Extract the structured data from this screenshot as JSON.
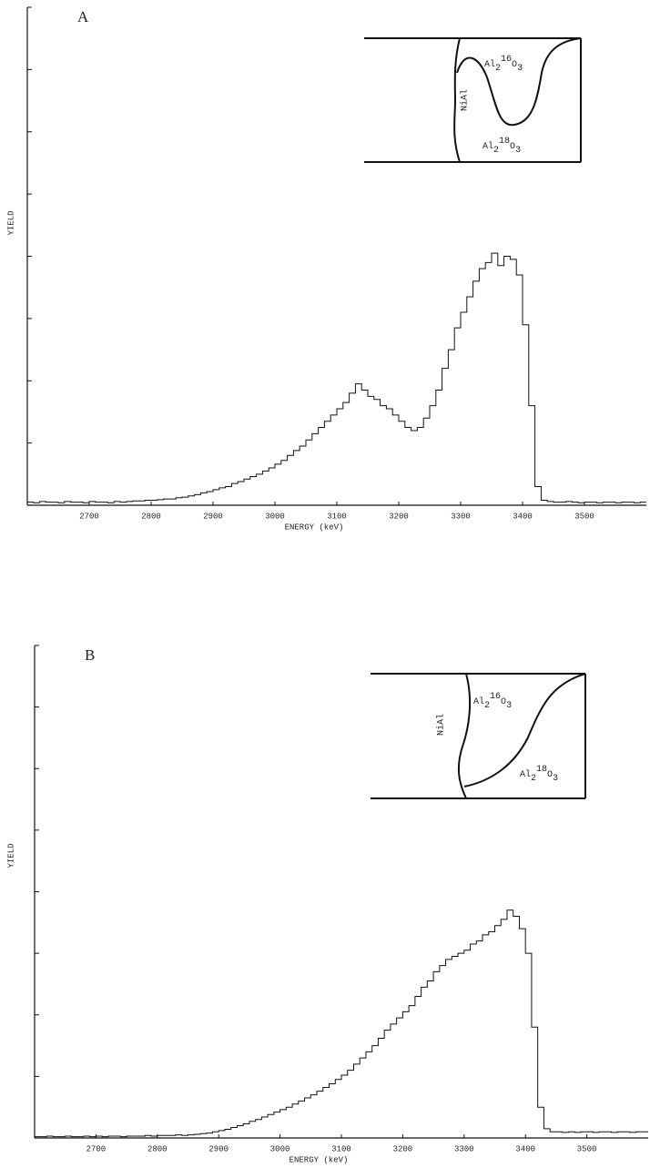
{
  "chart_data": [
    {
      "type": "step",
      "panel_label": "A",
      "xlabel": "ENERGY  (keV)",
      "ylabel": "YIELD",
      "color": "#111",
      "xlim": [
        2600,
        3600
      ],
      "xticks": [
        2700,
        2800,
        2900,
        3000,
        3100,
        3200,
        3300,
        3400,
        3500
      ],
      "ylim": [
        0,
        8
      ],
      "yticks": [
        0,
        1,
        2,
        3,
        4,
        5,
        6,
        7,
        8
      ],
      "x": [
        2600,
        2610,
        2620,
        2630,
        2640,
        2650,
        2660,
        2670,
        2680,
        2690,
        2700,
        2710,
        2720,
        2730,
        2740,
        2750,
        2760,
        2770,
        2780,
        2790,
        2800,
        2810,
        2820,
        2830,
        2840,
        2850,
        2860,
        2870,
        2880,
        2890,
        2900,
        2910,
        2920,
        2930,
        2940,
        2950,
        2960,
        2970,
        2980,
        2990,
        3000,
        3010,
        3020,
        3030,
        3040,
        3050,
        3060,
        3070,
        3080,
        3090,
        3100,
        3110,
        3120,
        3130,
        3140,
        3150,
        3160,
        3170,
        3180,
        3190,
        3200,
        3210,
        3220,
        3230,
        3240,
        3250,
        3260,
        3270,
        3280,
        3290,
        3300,
        3310,
        3320,
        3330,
        3340,
        3350,
        3360,
        3370,
        3380,
        3390,
        3400,
        3410,
        3420,
        3430,
        3440,
        3450,
        3460,
        3470,
        3480,
        3490,
        3500,
        3510,
        3520,
        3530,
        3540,
        3550,
        3560,
        3570,
        3580,
        3590,
        3600
      ],
      "values": [
        0.05,
        0.04,
        0.06,
        0.05,
        0.05,
        0.04,
        0.06,
        0.05,
        0.05,
        0.04,
        0.06,
        0.05,
        0.05,
        0.04,
        0.06,
        0.05,
        0.06,
        0.07,
        0.07,
        0.08,
        0.08,
        0.09,
        0.1,
        0.1,
        0.12,
        0.13,
        0.15,
        0.17,
        0.2,
        0.22,
        0.25,
        0.28,
        0.3,
        0.35,
        0.38,
        0.42,
        0.46,
        0.5,
        0.55,
        0.6,
        0.66,
        0.72,
        0.8,
        0.88,
        0.95,
        1.05,
        1.15,
        1.25,
        1.35,
        1.45,
        1.55,
        1.65,
        1.8,
        1.95,
        1.85,
        1.75,
        1.7,
        1.6,
        1.55,
        1.45,
        1.35,
        1.25,
        1.2,
        1.25,
        1.4,
        1.6,
        1.85,
        2.2,
        2.5,
        2.85,
        3.1,
        3.35,
        3.6,
        3.8,
        3.9,
        4.05,
        3.85,
        4.0,
        3.95,
        3.7,
        2.9,
        1.6,
        0.3,
        0.08,
        0.06,
        0.05,
        0.05,
        0.06,
        0.05,
        0.04,
        0.05,
        0.05,
        0.04,
        0.05,
        0.05,
        0.04,
        0.05,
        0.05,
        0.04,
        0.05,
        0.05
      ],
      "inset": {
        "left": "NiAl",
        "upper": [
          "Al",
          "2",
          "16",
          "O",
          "3"
        ],
        "lower": [
          "Al",
          "2",
          "18",
          "O",
          "3"
        ]
      }
    },
    {
      "type": "step",
      "panel_label": "B",
      "xlabel": "ENERGY  (keV)",
      "ylabel": "YIELD",
      "color": "#111",
      "xlim": [
        2600,
        3600
      ],
      "xticks": [
        2700,
        2800,
        2900,
        3000,
        3100,
        3200,
        3300,
        3400,
        3500
      ],
      "ylim": [
        0,
        8
      ],
      "yticks": [
        0,
        1,
        2,
        3,
        4,
        5,
        6,
        7,
        8
      ],
      "x": [
        2600,
        2610,
        2620,
        2630,
        2640,
        2650,
        2660,
        2670,
        2680,
        2690,
        2700,
        2710,
        2720,
        2730,
        2740,
        2750,
        2760,
        2770,
        2780,
        2790,
        2800,
        2810,
        2820,
        2830,
        2840,
        2850,
        2860,
        2870,
        2880,
        2890,
        2900,
        2910,
        2920,
        2930,
        2940,
        2950,
        2960,
        2970,
        2980,
        2990,
        3000,
        3010,
        3020,
        3030,
        3040,
        3050,
        3060,
        3070,
        3080,
        3090,
        3100,
        3110,
        3120,
        3130,
        3140,
        3150,
        3160,
        3170,
        3180,
        3190,
        3200,
        3210,
        3220,
        3230,
        3240,
        3250,
        3260,
        3270,
        3280,
        3290,
        3300,
        3310,
        3320,
        3330,
        3340,
        3350,
        3360,
        3370,
        3380,
        3390,
        3400,
        3410,
        3420,
        3430,
        3440,
        3450,
        3460,
        3470,
        3480,
        3490,
        3500,
        3510,
        3520,
        3530,
        3540,
        3550,
        3560,
        3570,
        3580,
        3590,
        3600
      ],
      "values": [
        0.02,
        0.02,
        0.03,
        0.02,
        0.02,
        0.03,
        0.02,
        0.02,
        0.03,
        0.02,
        0.03,
        0.02,
        0.03,
        0.03,
        0.02,
        0.03,
        0.03,
        0.03,
        0.04,
        0.03,
        0.04,
        0.04,
        0.04,
        0.05,
        0.04,
        0.05,
        0.06,
        0.07,
        0.08,
        0.1,
        0.12,
        0.14,
        0.17,
        0.2,
        0.23,
        0.27,
        0.3,
        0.34,
        0.38,
        0.42,
        0.46,
        0.5,
        0.55,
        0.6,
        0.65,
        0.7,
        0.76,
        0.82,
        0.88,
        0.95,
        1.02,
        1.1,
        1.2,
        1.3,
        1.4,
        1.5,
        1.62,
        1.75,
        1.85,
        1.95,
        2.05,
        2.15,
        2.3,
        2.45,
        2.55,
        2.7,
        2.8,
        2.9,
        2.95,
        3.0,
        3.05,
        3.15,
        3.2,
        3.3,
        3.35,
        3.45,
        3.55,
        3.7,
        3.6,
        3.4,
        3.0,
        1.8,
        0.5,
        0.15,
        0.1,
        0.1,
        0.09,
        0.1,
        0.09,
        0.1,
        0.1,
        0.09,
        0.1,
        0.1,
        0.09,
        0.1,
        0.1,
        0.09,
        0.1,
        0.1,
        0.1
      ],
      "inset": {
        "left": "NiAl",
        "upper": [
          "Al",
          "2",
          "16",
          "O",
          "3"
        ],
        "lower": [
          "Al",
          "2",
          "18",
          "O",
          "3"
        ]
      }
    }
  ]
}
